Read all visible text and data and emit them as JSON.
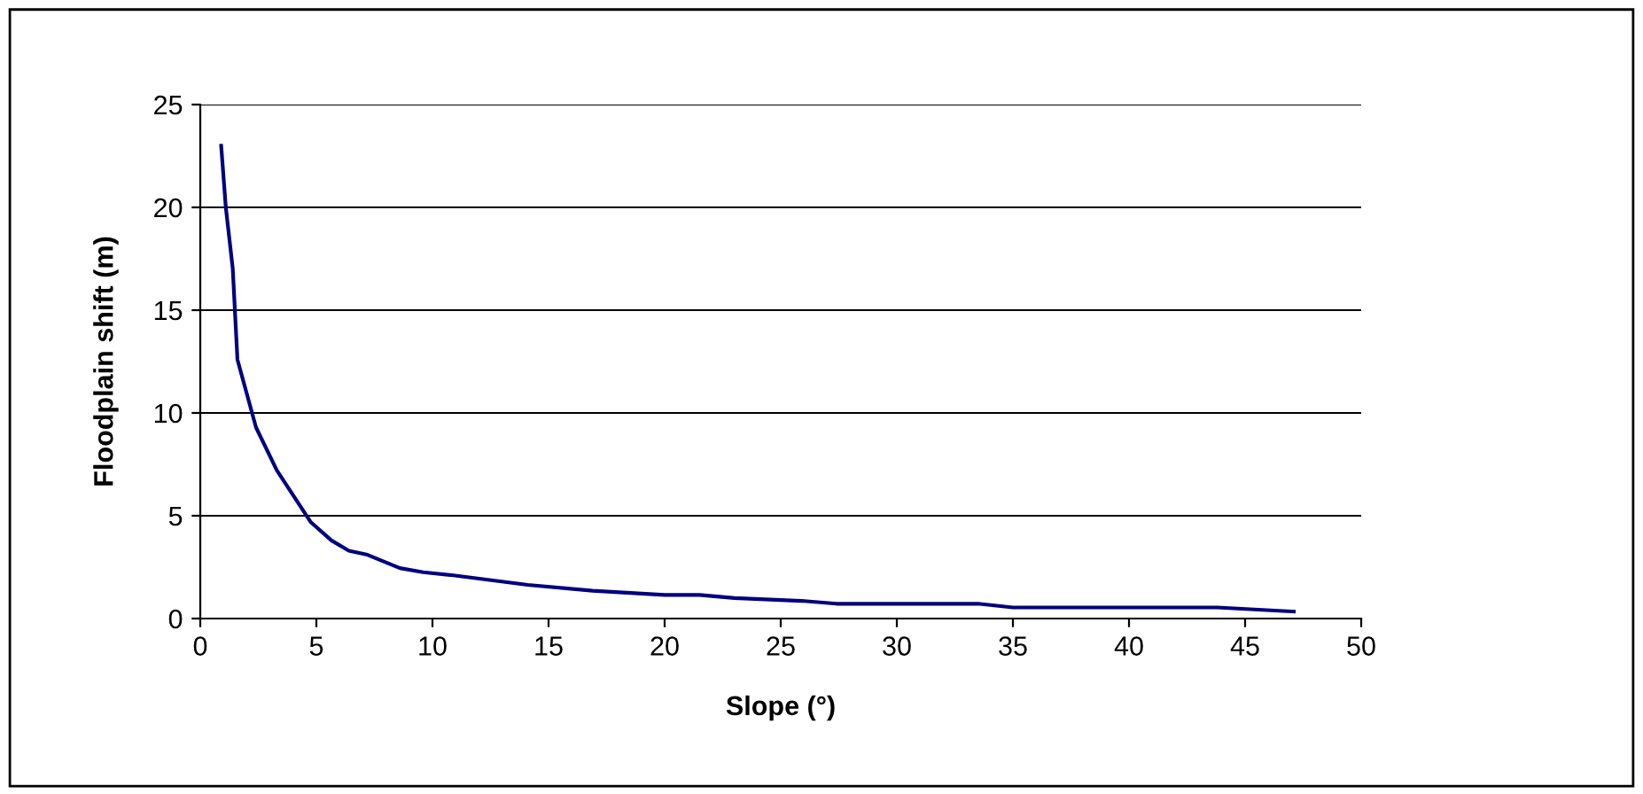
{
  "chart_data": {
    "type": "line",
    "xlabel": "Slope (°)",
    "ylabel": "Floodplain shift (m)",
    "series": [
      {
        "color": "#000080",
        "x": [
          0.9,
          1.1,
          1.4,
          1.6,
          2.4,
          3.3,
          4.75,
          5.65,
          6.4,
          7.2,
          8.6,
          9.6,
          10.9,
          14.1,
          16.9,
          20.0,
          21.5,
          23.0,
          25.9,
          27.4,
          33.5,
          35.0,
          43.8,
          47.1
        ],
        "values": [
          23.0,
          20.0,
          17.0,
          12.6,
          9.3,
          7.2,
          4.7,
          3.8,
          3.3,
          3.1,
          2.45,
          2.25,
          2.1,
          1.64,
          1.35,
          1.15,
          1.15,
          1.0,
          0.86,
          0.72,
          0.72,
          0.54,
          0.54,
          0.34
        ]
      }
    ],
    "xlim": [
      0,
      50
    ],
    "xticks": [
      0,
      5,
      10,
      15,
      20,
      25,
      30,
      35,
      40,
      45,
      50
    ],
    "ylim": [
      0,
      25
    ],
    "yticks": [
      0,
      5,
      10,
      15,
      20,
      25
    ],
    "grid": "y",
    "legend": false,
    "marker": "none",
    "line_style": "solid"
  }
}
